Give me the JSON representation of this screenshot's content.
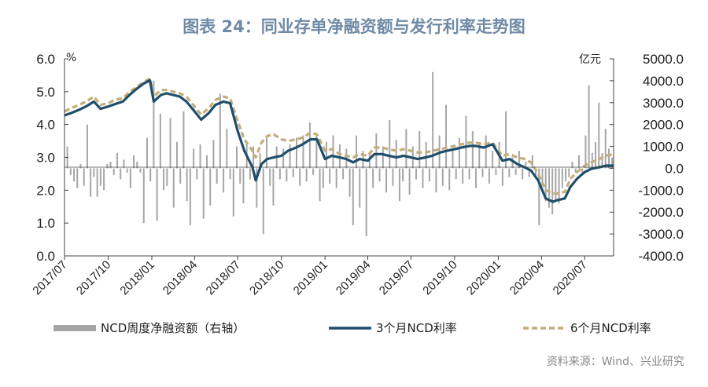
{
  "chart_data": {
    "type": "bar+line",
    "title": "图表 24：同业存单净融资额与发行利率走势图",
    "source": "资料来源：Wind、兴业研究",
    "left_axis": {
      "unit": "%",
      "min": 0,
      "max": 6,
      "ticks": [
        "0.0",
        "1.0",
        "2.0",
        "3.0",
        "4.0",
        "5.0",
        "6.0"
      ]
    },
    "right_axis": {
      "unit": "亿元",
      "min": -4000,
      "max": 5000,
      "ticks": [
        "-4000.0",
        "-3000.0",
        "-2000.0",
        "-1000.0",
        "0.0",
        "1000.0",
        "2000.0",
        "3000.0",
        "4000.0",
        "5000.0"
      ]
    },
    "x_ticks": [
      "2017/07",
      "2017/10",
      "2018/01",
      "2018/04",
      "2018/07",
      "2018/10",
      "2019/01",
      "2019/04",
      "2019/07",
      "2019/10",
      "2020/01",
      "2020/04",
      "2020/07"
    ],
    "x_range": [
      "2017-07-01",
      "2020-08-31"
    ],
    "legend": {
      "bars": "NCD周度净融资额（右轴）",
      "line3m": "3个月NCD利率",
      "line6m": "6个月NCD利率"
    },
    "colors": {
      "bars": "#a6a6a6",
      "line3m": "#1f4e6b",
      "line6m": "#c4ad7c"
    },
    "series_3m": [
      [
        "2017-07-01",
        4.28
      ],
      [
        "2017-07-15",
        4.35
      ],
      [
        "2017-08-01",
        4.45
      ],
      [
        "2017-08-15",
        4.55
      ],
      [
        "2017-09-01",
        4.7
      ],
      [
        "2017-09-15",
        4.48
      ],
      [
        "2017-10-01",
        4.55
      ],
      [
        "2017-10-15",
        4.62
      ],
      [
        "2017-11-01",
        4.7
      ],
      [
        "2017-11-15",
        4.9
      ],
      [
        "2017-12-01",
        5.1
      ],
      [
        "2017-12-15",
        5.25
      ],
      [
        "2017-12-28",
        5.35
      ],
      [
        "2018-01-05",
        4.7
      ],
      [
        "2018-01-20",
        4.9
      ],
      [
        "2018-02-01",
        4.95
      ],
      [
        "2018-02-15",
        4.9
      ],
      [
        "2018-03-01",
        4.85
      ],
      [
        "2018-03-15",
        4.7
      ],
      [
        "2018-04-01",
        4.4
      ],
      [
        "2018-04-15",
        4.15
      ],
      [
        "2018-05-01",
        4.35
      ],
      [
        "2018-05-15",
        4.6
      ],
      [
        "2018-06-01",
        4.7
      ],
      [
        "2018-06-15",
        4.65
      ],
      [
        "2018-07-01",
        3.8
      ],
      [
        "2018-07-15",
        3.2
      ],
      [
        "2018-08-01",
        2.7
      ],
      [
        "2018-08-08",
        2.3
      ],
      [
        "2018-08-20",
        2.8
      ],
      [
        "2018-09-01",
        2.95
      ],
      [
        "2018-09-15",
        3.0
      ],
      [
        "2018-10-01",
        3.05
      ],
      [
        "2018-10-15",
        3.2
      ],
      [
        "2018-11-01",
        3.3
      ],
      [
        "2018-11-15",
        3.4
      ],
      [
        "2018-12-01",
        3.55
      ],
      [
        "2018-12-15",
        3.55
      ],
      [
        "2019-01-01",
        2.95
      ],
      [
        "2019-01-15",
        3.05
      ],
      [
        "2019-02-01",
        3.0
      ],
      [
        "2019-02-15",
        2.95
      ],
      [
        "2019-03-01",
        2.85
      ],
      [
        "2019-03-15",
        2.95
      ],
      [
        "2019-04-01",
        2.9
      ],
      [
        "2019-04-15",
        3.1
      ],
      [
        "2019-05-01",
        3.1
      ],
      [
        "2019-05-15",
        3.05
      ],
      [
        "2019-06-01",
        3.0
      ],
      [
        "2019-06-15",
        3.05
      ],
      [
        "2019-07-01",
        3.0
      ],
      [
        "2019-07-15",
        2.95
      ],
      [
        "2019-08-01",
        3.0
      ],
      [
        "2019-08-15",
        3.05
      ],
      [
        "2019-09-01",
        3.15
      ],
      [
        "2019-09-15",
        3.2
      ],
      [
        "2019-10-01",
        3.25
      ],
      [
        "2019-10-15",
        3.3
      ],
      [
        "2019-11-01",
        3.35
      ],
      [
        "2019-11-15",
        3.35
      ],
      [
        "2019-12-01",
        3.3
      ],
      [
        "2019-12-20",
        3.4
      ],
      [
        "2020-01-10",
        2.9
      ],
      [
        "2020-01-25",
        2.95
      ],
      [
        "2020-02-10",
        2.8
      ],
      [
        "2020-02-25",
        2.7
      ],
      [
        "2020-03-10",
        2.6
      ],
      [
        "2020-03-25",
        2.3
      ],
      [
        "2020-04-10",
        1.75
      ],
      [
        "2020-04-25",
        1.65
      ],
      [
        "2020-05-05",
        1.7
      ],
      [
        "2020-05-20",
        1.75
      ],
      [
        "2020-06-01",
        2.1
      ],
      [
        "2020-06-15",
        2.35
      ],
      [
        "2020-07-01",
        2.55
      ],
      [
        "2020-07-15",
        2.65
      ],
      [
        "2020-08-01",
        2.7
      ],
      [
        "2020-08-15",
        2.75
      ],
      [
        "2020-08-31",
        2.75
      ]
    ],
    "series_6m": [
      [
        "2017-07-01",
        4.4
      ],
      [
        "2017-07-15",
        4.5
      ],
      [
        "2017-08-01",
        4.6
      ],
      [
        "2017-08-15",
        4.7
      ],
      [
        "2017-09-01",
        4.85
      ],
      [
        "2017-09-15",
        4.6
      ],
      [
        "2017-10-01",
        4.65
      ],
      [
        "2017-10-15",
        4.75
      ],
      [
        "2017-11-01",
        4.8
      ],
      [
        "2017-11-15",
        5.0
      ],
      [
        "2017-12-01",
        5.15
      ],
      [
        "2017-12-15",
        5.3
      ],
      [
        "2017-12-28",
        5.4
      ],
      [
        "2018-01-05",
        4.85
      ],
      [
        "2018-01-20",
        5.05
      ],
      [
        "2018-02-01",
        5.05
      ],
      [
        "2018-02-15",
        5.0
      ],
      [
        "2018-03-01",
        4.95
      ],
      [
        "2018-03-15",
        4.85
      ],
      [
        "2018-04-01",
        4.55
      ],
      [
        "2018-04-15",
        4.3
      ],
      [
        "2018-05-01",
        4.5
      ],
      [
        "2018-05-15",
        4.75
      ],
      [
        "2018-06-01",
        4.85
      ],
      [
        "2018-06-15",
        4.8
      ],
      [
        "2018-07-01",
        4.1
      ],
      [
        "2018-07-15",
        3.55
      ],
      [
        "2018-08-01",
        3.2
      ],
      [
        "2018-08-08",
        3.0
      ],
      [
        "2018-08-20",
        3.45
      ],
      [
        "2018-09-01",
        3.65
      ],
      [
        "2018-09-15",
        3.7
      ],
      [
        "2018-10-01",
        3.55
      ],
      [
        "2018-10-15",
        3.5
      ],
      [
        "2018-11-01",
        3.55
      ],
      [
        "2018-11-15",
        3.6
      ],
      [
        "2018-12-01",
        3.75
      ],
      [
        "2018-12-15",
        3.7
      ],
      [
        "2019-01-01",
        3.2
      ],
      [
        "2019-01-15",
        3.25
      ],
      [
        "2019-02-01",
        3.1
      ],
      [
        "2019-02-15",
        3.05
      ],
      [
        "2019-03-01",
        3.0
      ],
      [
        "2019-03-15",
        3.1
      ],
      [
        "2019-04-01",
        3.05
      ],
      [
        "2019-04-15",
        3.3
      ],
      [
        "2019-05-01",
        3.3
      ],
      [
        "2019-05-15",
        3.25
      ],
      [
        "2019-06-01",
        3.2
      ],
      [
        "2019-06-15",
        3.25
      ],
      [
        "2019-07-01",
        3.2
      ],
      [
        "2019-07-15",
        3.15
      ],
      [
        "2019-08-01",
        3.15
      ],
      [
        "2019-08-15",
        3.2
      ],
      [
        "2019-09-01",
        3.25
      ],
      [
        "2019-09-15",
        3.3
      ],
      [
        "2019-10-01",
        3.35
      ],
      [
        "2019-10-15",
        3.4
      ],
      [
        "2019-11-01",
        3.45
      ],
      [
        "2019-11-15",
        3.45
      ],
      [
        "2019-12-01",
        3.4
      ],
      [
        "2019-12-20",
        3.45
      ],
      [
        "2020-01-10",
        3.05
      ],
      [
        "2020-01-25",
        3.1
      ],
      [
        "2020-02-10",
        3.0
      ],
      [
        "2020-02-25",
        2.95
      ],
      [
        "2020-03-10",
        2.85
      ],
      [
        "2020-03-25",
        2.5
      ],
      [
        "2020-04-10",
        2.0
      ],
      [
        "2020-04-25",
        1.9
      ],
      [
        "2020-05-05",
        1.9
      ],
      [
        "2020-05-20",
        1.95
      ],
      [
        "2020-06-01",
        2.35
      ],
      [
        "2020-06-15",
        2.55
      ],
      [
        "2020-07-01",
        2.75
      ],
      [
        "2020-07-15",
        2.85
      ],
      [
        "2020-08-01",
        2.95
      ],
      [
        "2020-08-15",
        3.05
      ],
      [
        "2020-08-31",
        3.1
      ]
    ],
    "bars": [
      [
        "2017-07-07",
        1000
      ],
      [
        "2017-07-14",
        -300
      ],
      [
        "2017-07-21",
        -600
      ],
      [
        "2017-07-28",
        -900
      ],
      [
        "2017-08-04",
        200
      ],
      [
        "2017-08-11",
        -800
      ],
      [
        "2017-08-18",
        2000
      ],
      [
        "2017-08-25",
        -1300
      ],
      [
        "2017-09-01",
        -400
      ],
      [
        "2017-09-08",
        -1300
      ],
      [
        "2017-09-15",
        -800
      ],
      [
        "2017-09-22",
        -1000
      ],
      [
        "2017-09-29",
        200
      ],
      [
        "2017-10-06",
        300
      ],
      [
        "2017-10-13",
        -300
      ],
      [
        "2017-10-20",
        700
      ],
      [
        "2017-10-27",
        -500
      ],
      [
        "2017-11-03",
        400
      ],
      [
        "2017-11-10",
        -200
      ],
      [
        "2017-11-17",
        -900
      ],
      [
        "2017-11-24",
        600
      ],
      [
        "2017-12-01",
        300
      ],
      [
        "2017-12-08",
        -200
      ],
      [
        "2017-12-15",
        -2500
      ],
      [
        "2017-12-22",
        1400
      ],
      [
        "2017-12-29",
        -600
      ],
      [
        "2018-01-05",
        4000
      ],
      [
        "2018-01-12",
        -2400
      ],
      [
        "2018-01-19",
        2500
      ],
      [
        "2018-01-26",
        -1000
      ],
      [
        "2018-02-02",
        -800
      ],
      [
        "2018-02-09",
        2300
      ],
      [
        "2018-02-16",
        -1800
      ],
      [
        "2018-02-23",
        1200
      ],
      [
        "2018-03-02",
        -700
      ],
      [
        "2018-03-09",
        2600
      ],
      [
        "2018-03-16",
        -1500
      ],
      [
        "2018-03-23",
        -2600
      ],
      [
        "2018-03-30",
        900
      ],
      [
        "2018-04-06",
        -500
      ],
      [
        "2018-04-13",
        1100
      ],
      [
        "2018-04-20",
        -2300
      ],
      [
        "2018-04-27",
        600
      ],
      [
        "2018-05-04",
        -1700
      ],
      [
        "2018-05-11",
        1300
      ],
      [
        "2018-05-18",
        -700
      ],
      [
        "2018-05-25",
        3400
      ],
      [
        "2018-06-01",
        -1100
      ],
      [
        "2018-06-08",
        1800
      ],
      [
        "2018-06-15",
        -500
      ],
      [
        "2018-06-22",
        -2200
      ],
      [
        "2018-06-29",
        1000
      ],
      [
        "2018-07-06",
        -700
      ],
      [
        "2018-07-13",
        -1600
      ],
      [
        "2018-07-20",
        1100
      ],
      [
        "2018-07-27",
        -500
      ],
      [
        "2018-08-03",
        1000
      ],
      [
        "2018-08-10",
        -1800
      ],
      [
        "2018-08-17",
        700
      ],
      [
        "2018-08-24",
        -3000
      ],
      [
        "2018-08-31",
        1400
      ],
      [
        "2018-09-07",
        -800
      ],
      [
        "2018-09-14",
        -1700
      ],
      [
        "2018-09-21",
        1000
      ],
      [
        "2018-09-28",
        -500
      ],
      [
        "2018-10-05",
        900
      ],
      [
        "2018-10-12",
        -600
      ],
      [
        "2018-10-19",
        1100
      ],
      [
        "2018-10-26",
        -400
      ],
      [
        "2018-11-02",
        1400
      ],
      [
        "2018-11-09",
        -800
      ],
      [
        "2018-11-16",
        1500
      ],
      [
        "2018-11-23",
        -600
      ],
      [
        "2018-11-30",
        2100
      ],
      [
        "2018-12-07",
        -300
      ],
      [
        "2018-12-14",
        1600
      ],
      [
        "2018-12-21",
        -1500
      ],
      [
        "2018-12-28",
        -900
      ],
      [
        "2019-01-04",
        1200
      ],
      [
        "2019-01-11",
        -700
      ],
      [
        "2019-01-18",
        1500
      ],
      [
        "2019-01-25",
        -900
      ],
      [
        "2019-02-01",
        1100
      ],
      [
        "2019-02-08",
        -500
      ],
      [
        "2019-02-15",
        900
      ],
      [
        "2019-02-22",
        -1300
      ],
      [
        "2019-03-01",
        -2600
      ],
      [
        "2019-03-08",
        1500
      ],
      [
        "2019-03-15",
        -1800
      ],
      [
        "2019-03-22",
        800
      ],
      [
        "2019-03-29",
        -3100
      ],
      [
        "2019-04-05",
        700
      ],
      [
        "2019-04-12",
        -900
      ],
      [
        "2019-04-19",
        1600
      ],
      [
        "2019-04-26",
        -600
      ],
      [
        "2019-05-03",
        1000
      ],
      [
        "2019-05-10",
        -1100
      ],
      [
        "2019-05-17",
        2200
      ],
      [
        "2019-05-24",
        -800
      ],
      [
        "2019-05-31",
        1300
      ],
      [
        "2019-06-07",
        -1500
      ],
      [
        "2019-06-14",
        -600
      ],
      [
        "2019-06-21",
        1800
      ],
      [
        "2019-06-28",
        -1200
      ],
      [
        "2019-07-05",
        1000
      ],
      [
        "2019-07-12",
        -500
      ],
      [
        "2019-07-19",
        1700
      ],
      [
        "2019-07-26",
        -900
      ],
      [
        "2019-08-02",
        1200
      ],
      [
        "2019-08-09",
        -600
      ],
      [
        "2019-08-16",
        4400
      ],
      [
        "2019-08-23",
        -1100
      ],
      [
        "2019-08-30",
        1500
      ],
      [
        "2019-09-06",
        -800
      ],
      [
        "2019-09-13",
        2900
      ],
      [
        "2019-09-20",
        -1000
      ],
      [
        "2019-09-27",
        800
      ],
      [
        "2019-10-04",
        -500
      ],
      [
        "2019-10-11",
        1400
      ],
      [
        "2019-10-18",
        -700
      ],
      [
        "2019-10-25",
        2400
      ],
      [
        "2019-11-01",
        -500
      ],
      [
        "2019-11-08",
        1700
      ],
      [
        "2019-11-15",
        -900
      ],
      [
        "2019-11-22",
        1200
      ],
      [
        "2019-11-29",
        -400
      ],
      [
        "2019-12-06",
        1500
      ],
      [
        "2019-12-13",
        -700
      ],
      [
        "2019-12-20",
        800
      ],
      [
        "2019-12-27",
        -300
      ],
      [
        "2020-01-03",
        1200
      ],
      [
        "2020-01-10",
        -800
      ],
      [
        "2020-01-17",
        2600
      ],
      [
        "2020-01-24",
        -400
      ],
      [
        "2020-01-31",
        500
      ],
      [
        "2020-02-07",
        -300
      ],
      [
        "2020-02-14",
        800
      ],
      [
        "2020-02-21",
        -500
      ],
      [
        "2020-02-28",
        300
      ],
      [
        "2020-03-06",
        -400
      ],
      [
        "2020-03-13",
        600
      ],
      [
        "2020-03-20",
        -300
      ],
      [
        "2020-03-27",
        -2600
      ],
      [
        "2020-04-03",
        -800
      ],
      [
        "2020-04-10",
        -1500
      ],
      [
        "2020-04-17",
        -1800
      ],
      [
        "2020-04-24",
        -2100
      ],
      [
        "2020-05-01",
        -1500
      ],
      [
        "2020-05-08",
        -1600
      ],
      [
        "2020-05-15",
        -900
      ],
      [
        "2020-05-22",
        -600
      ],
      [
        "2020-05-29",
        -400
      ],
      [
        "2020-06-05",
        300
      ],
      [
        "2020-06-12",
        -200
      ],
      [
        "2020-06-19",
        600
      ],
      [
        "2020-06-26",
        -300
      ],
      [
        "2020-07-03",
        1500
      ],
      [
        "2020-07-10",
        3800
      ],
      [
        "2020-07-17",
        700
      ],
      [
        "2020-07-24",
        1200
      ],
      [
        "2020-07-31",
        3000
      ],
      [
        "2020-08-07",
        700
      ],
      [
        "2020-08-14",
        1800
      ],
      [
        "2020-08-21",
        900
      ],
      [
        "2020-08-28",
        500
      ]
    ]
  }
}
